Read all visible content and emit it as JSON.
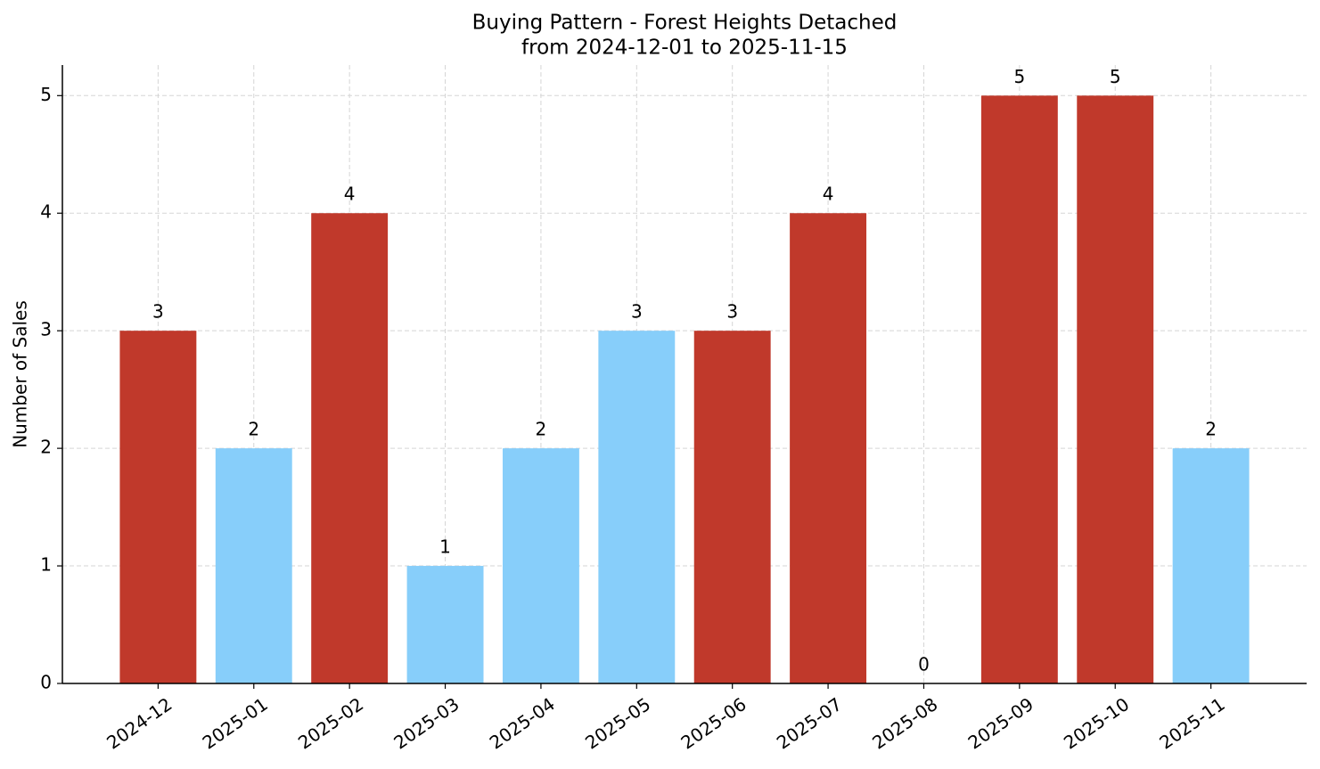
{
  "chart_data": {
    "type": "bar",
    "title": "Buying Pattern - Forest Heights Detached",
    "subtitle": "from 2024-12-01 to 2025-11-15",
    "y_label": "Number of Sales",
    "categories": [
      "2024-12",
      "2025-01",
      "2025-02",
      "2025-03",
      "2025-04",
      "2025-05",
      "2025-06",
      "2025-07",
      "2025-08",
      "2025-09",
      "2025-10",
      "2025-11"
    ],
    "values": [
      3,
      2,
      4,
      1,
      2,
      3,
      3,
      4,
      0,
      5,
      5,
      2
    ],
    "colors": [
      "#c0392b",
      "#87cefa",
      "#c0392b",
      "#87cefa",
      "#87cefa",
      "#87cefa",
      "#c0392b",
      "#c0392b",
      "#c0392b",
      "#c0392b",
      "#c0392b",
      "#87cefa"
    ],
    "ylim": [
      0,
      5.26
    ],
    "yticks": [
      0,
      1,
      2,
      3,
      4,
      5
    ],
    "grid": true
  }
}
